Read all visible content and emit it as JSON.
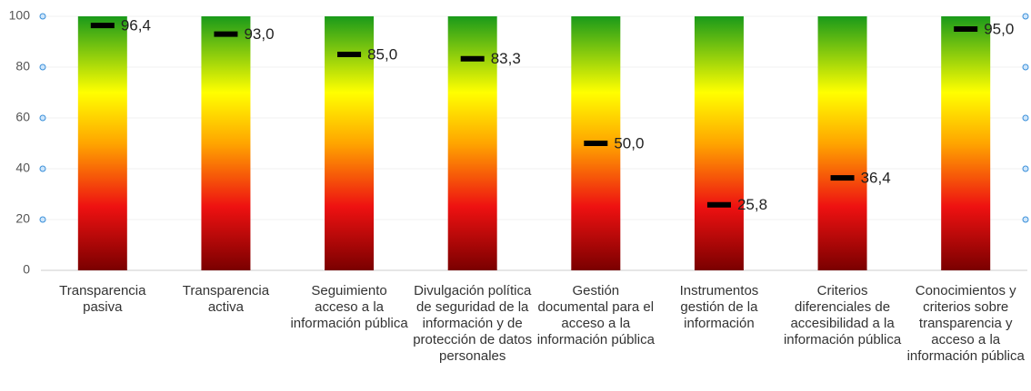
{
  "chart_data": {
    "type": "bullet",
    "categories": [
      "Transparencia pasiva",
      "Transparencia activa",
      "Seguimiento acceso a la información pública",
      "Divulgación política de seguridad de la información y de protección de datos personales",
      "Gestión documental para el acceso a la información pública",
      "Instrumentos gestión de la información",
      "Criterios diferenciales de accesibilidad a la información pública",
      "Conocimientos y criterios sobre transparencia y acceso a la información pública"
    ],
    "values": [
      96.4,
      93.0,
      85.0,
      83.3,
      50.0,
      25.8,
      36.4,
      95.0
    ],
    "value_labels": [
      "96,4",
      "93,0",
      "85,0",
      "83,3",
      "50,0",
      "25,8",
      "36,4",
      "95,0"
    ],
    "color": "#000000",
    "ylim": [
      0,
      100
    ],
    "yticks": [
      0,
      20,
      40,
      60,
      80,
      100
    ],
    "grid": true
  }
}
